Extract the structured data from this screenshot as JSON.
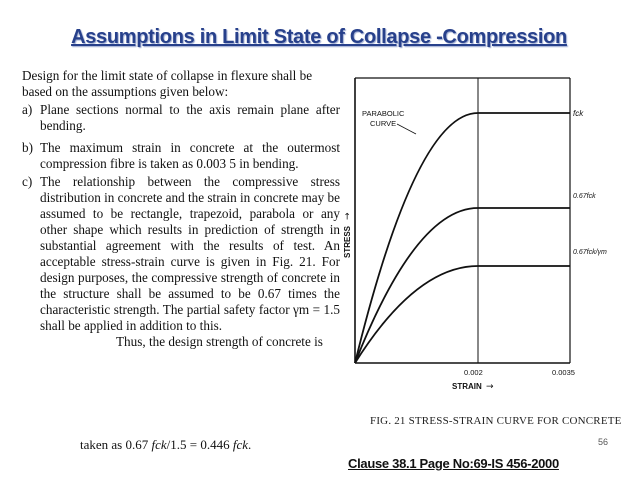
{
  "slide": {
    "title": "Assumptions in Limit State of Collapse -Compression",
    "page_number": "56",
    "clause_ref": "Clause 38.1 Page No:69-IS 456-2000"
  },
  "scan": {
    "intro": "Design for the limit state of collapse in flexure shall be based on the assumptions given below:",
    "items": [
      {
        "label": "a)",
        "text": "Plane sections normal to the axis remain plane after bending."
      },
      {
        "label": "b)",
        "text": "The maximum strain in concrete at the outermost compression fibre is taken as 0.003 5 in bending."
      },
      {
        "label": "c)",
        "text": "The relationship between the compressive stress distribution in concrete and the strain in concrete may be assumed to be rectangle, trapezoid, parabola or any other shape which results in prediction of strength in substantial agreement with the results of test. An acceptable stress-strain curve is given in Fig. 21. For design purposes, the compressive strength of concrete in the structure shall be assumed to be 0.67 times the characteristic strength. The partial safety factor γm = 1.5 shall be applied in addition to this."
      }
    ],
    "thus_line": "Thus, the design strength of concrete is",
    "final_prefix": "taken as 0.67",
    "final_fck_a": "fck",
    "final_mid": "/1.5 = 0.446",
    "final_fck_b": "fck",
    "final_suffix": "."
  },
  "figure": {
    "caption": "FIG. 21 STRESS-STRAIN CURVE FOR CONCRETE",
    "curve_label": "PARABOLIC CURVE",
    "y_axis_label": "STRESS",
    "x_axis_label": "STRAIN",
    "x_arrow": "→",
    "y_arrow": "↑",
    "level_labels": [
      "fck",
      "0.67fck",
      "0.67fck/γm"
    ],
    "x_tick_labels": [
      "0.002",
      "0.0035"
    ]
  }
}
